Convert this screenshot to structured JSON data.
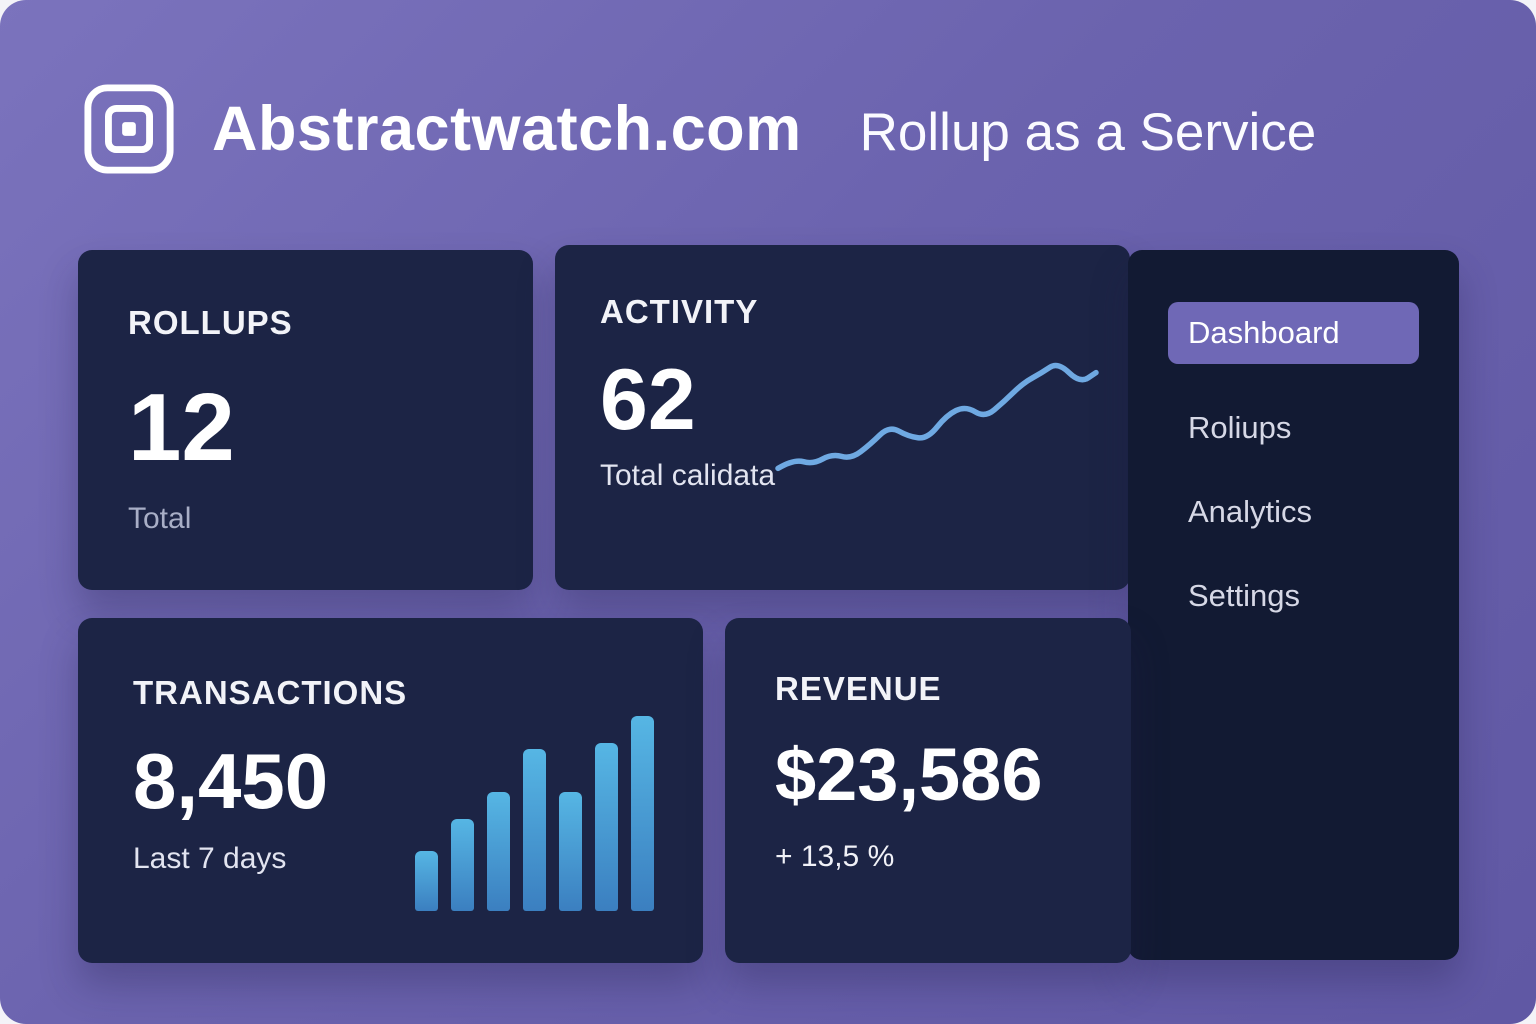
{
  "header": {
    "title": "Abstractwatch.com",
    "subtitle": "Rollup as a Service"
  },
  "sidebar": {
    "items": [
      {
        "label": "Dashboard",
        "active": true
      },
      {
        "label": "Roliups",
        "active": false
      },
      {
        "label": "Analytics",
        "active": false
      },
      {
        "label": "Settings",
        "active": false
      }
    ]
  },
  "cards": {
    "rollups": {
      "title": "ROLLUPS",
      "value": "12",
      "subtitle": "Total"
    },
    "activity": {
      "title": "ACTIVITY",
      "value": "62",
      "subtitle": "Total calidata"
    },
    "transactions": {
      "title": "TRANSACTIONS",
      "value": "8,450",
      "subtitle": "Last 7 days"
    },
    "revenue": {
      "title": "REVENUE",
      "value": "$23,586",
      "subtitle": "+ 13,5 %"
    }
  },
  "chart_data": [
    {
      "type": "line",
      "name": "activity-sparkline",
      "title": "ACTIVITY",
      "value_label": "62",
      "x": [
        0,
        5,
        11,
        17,
        23,
        29,
        35,
        41,
        47,
        53,
        59,
        65,
        71,
        77,
        83,
        88,
        95,
        100
      ],
      "y": [
        8,
        15,
        11,
        19,
        15,
        26,
        40,
        32,
        30,
        48,
        55,
        46,
        58,
        72,
        80,
        88,
        72,
        80
      ],
      "xlabel": "",
      "ylabel": "",
      "grid": false,
      "legend": false
    },
    {
      "type": "bar",
      "name": "transactions-bars",
      "title": "TRANSACTIONS",
      "values": [
        550,
        850,
        1100,
        1500,
        1100,
        1550,
        1800
      ],
      "total_label": "8,450",
      "period_label": "Last 7 days",
      "ylim": [
        0,
        1800
      ],
      "grid": false,
      "legend": false
    }
  ],
  "colors": {
    "background": "#6b63ae",
    "card": "#1c2445",
    "sidebar": "#121a33",
    "accent": "#6f68b6",
    "line": "#6fa9e2",
    "bar_top": "#56b6e4",
    "bar_bottom": "#3b7fc0",
    "muted_text": "#a8aec6"
  }
}
